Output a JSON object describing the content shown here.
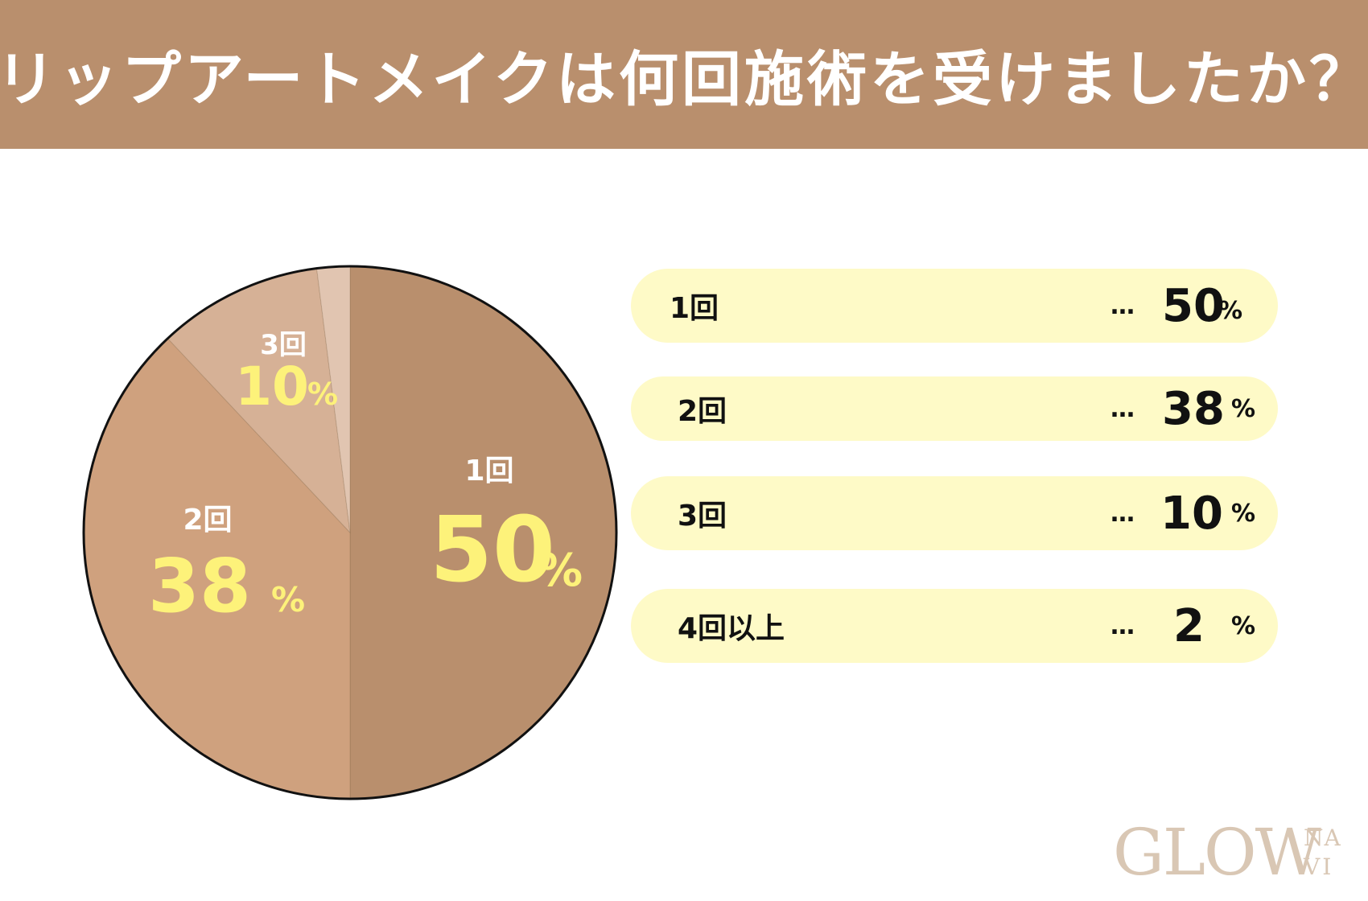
{
  "header": {
    "title": "リップアートメイクは何回施術を受けましたか？",
    "color": "#b98f6d"
  },
  "chart_data": {
    "type": "pie",
    "categories": [
      "1回",
      "2回",
      "3回",
      "4回以上"
    ],
    "values": [
      50,
      38,
      10,
      2
    ],
    "value_suffix": "%",
    "colors": [
      "#b98f6d",
      "#cfa17e",
      "#d6b196",
      "#e1c5b1"
    ],
    "label_color": "#fdf27a",
    "slice_labels": [
      {
        "category": "1回",
        "value": "50",
        "unit": "%"
      },
      {
        "category": "2回",
        "value": "38",
        "unit": "%"
      },
      {
        "category": "3回",
        "value": "10",
        "unit": "%"
      }
    ]
  },
  "legend": {
    "dots": "…",
    "background": "#fefac7",
    "items": [
      {
        "label": "1回",
        "value": "50",
        "unit": "%"
      },
      {
        "label": "2回",
        "value": "38",
        "unit": "%"
      },
      {
        "label": "3回",
        "value": "10",
        "unit": "%"
      },
      {
        "label": "4回以上",
        "value": "2",
        "unit": "%"
      }
    ]
  },
  "logo": {
    "main": "GLOW",
    "top": "NA",
    "bottom": "VI"
  }
}
